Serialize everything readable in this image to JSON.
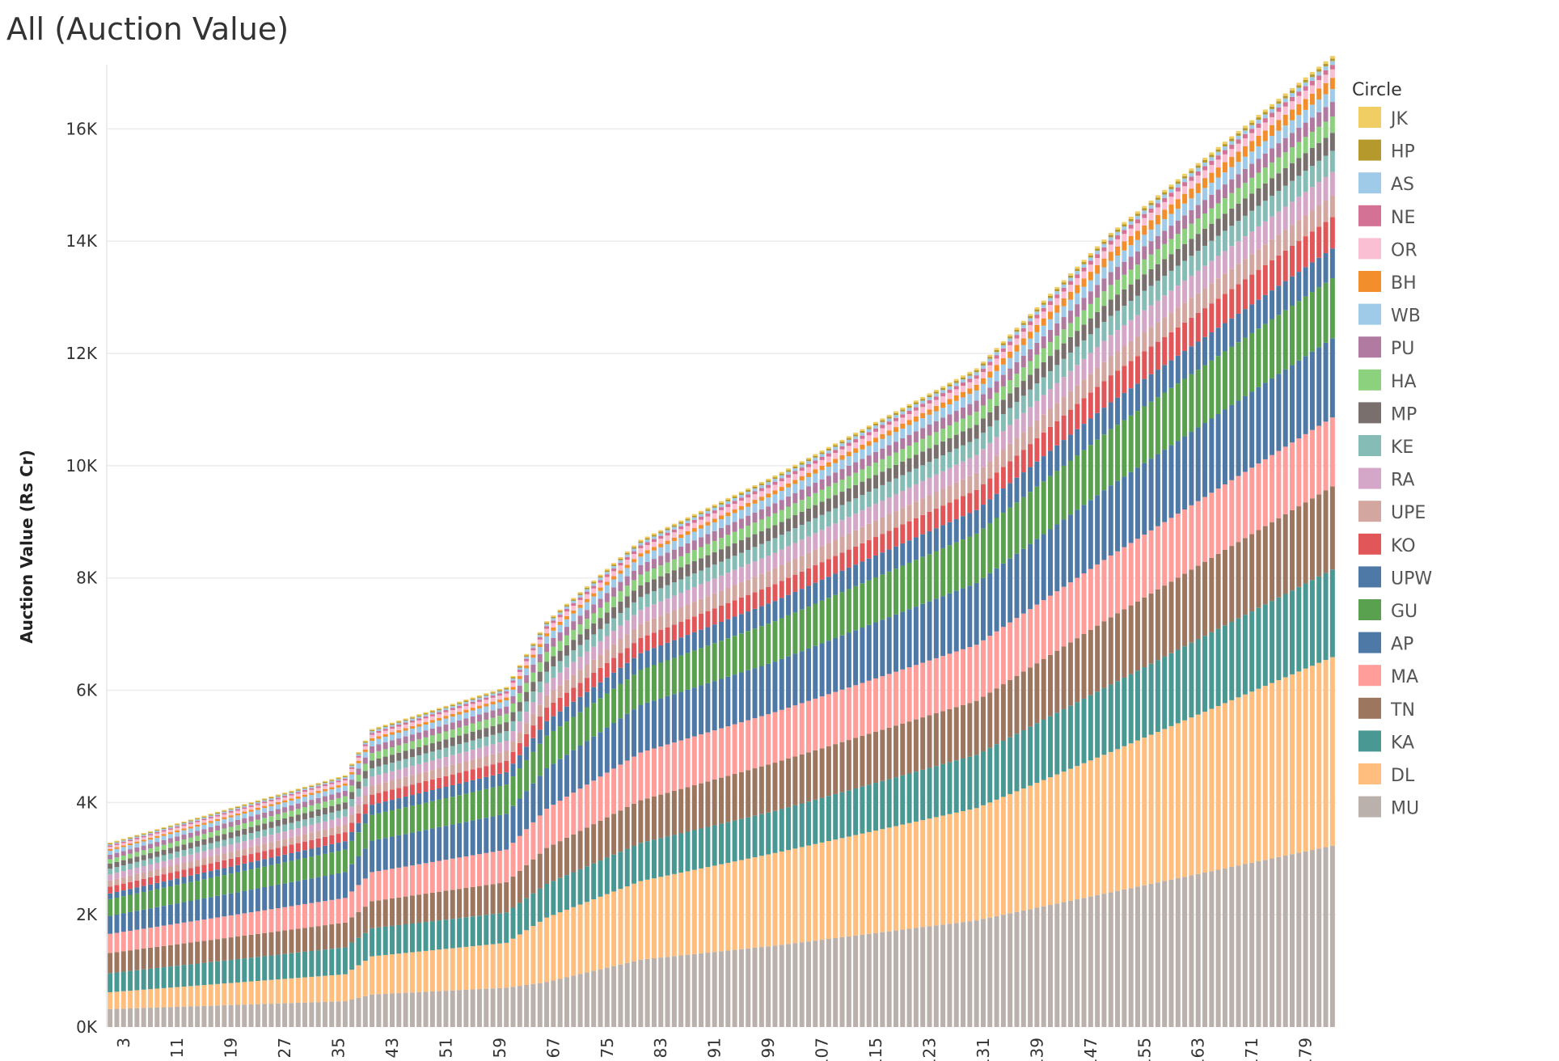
{
  "chart_data": {
    "type": "bar",
    "stacked": true,
    "title": "All (Auction Value)",
    "ylabel": "Auction Value (Rs Cr)",
    "xlabel": "",
    "ylim": [
      0,
      17000
    ],
    "y_ticks": [
      "0K",
      "2K",
      "4K",
      "6K",
      "8K",
      "10K",
      "12K",
      "14K",
      "16K"
    ],
    "y_tick_values": [
      0,
      2000,
      4000,
      6000,
      8000,
      10000,
      12000,
      14000,
      16000
    ],
    "x_start": 1,
    "x_end": 183,
    "x_ticks": [
      3,
      11,
      19,
      27,
      35,
      43,
      51,
      59,
      67,
      75,
      83,
      91,
      99,
      107,
      115,
      123,
      131,
      139,
      147,
      155,
      163,
      171,
      179
    ],
    "grid": true,
    "legend_title": "Circle",
    "legend_position": "right",
    "series": [
      {
        "name": "MU",
        "color": "#bab0ac",
        "anchors": [
          [
            1,
            320
          ],
          [
            36,
            460
          ],
          [
            40,
            580
          ],
          [
            60,
            700
          ],
          [
            66,
            800
          ],
          [
            80,
            1200
          ],
          [
            100,
            1450
          ],
          [
            130,
            1900
          ],
          [
            150,
            2400
          ],
          [
            183,
            3230
          ]
        ]
      },
      {
        "name": "DL",
        "color": "#ffbe7d",
        "anchors": [
          [
            1,
            300
          ],
          [
            36,
            480
          ],
          [
            40,
            680
          ],
          [
            60,
            800
          ],
          [
            66,
            1150
          ],
          [
            80,
            1400
          ],
          [
            100,
            1650
          ],
          [
            130,
            2000
          ],
          [
            150,
            2500
          ],
          [
            183,
            3360
          ]
        ]
      },
      {
        "name": "KA",
        "color": "#499894",
        "anchors": [
          [
            1,
            340
          ],
          [
            36,
            480
          ],
          [
            40,
            500
          ],
          [
            60,
            540
          ],
          [
            66,
            600
          ],
          [
            80,
            680
          ],
          [
            100,
            750
          ],
          [
            130,
            950
          ],
          [
            150,
            1200
          ],
          [
            183,
            1560
          ]
        ]
      },
      {
        "name": "TN",
        "color": "#9d7660",
        "anchors": [
          [
            1,
            360
          ],
          [
            36,
            440
          ],
          [
            40,
            480
          ],
          [
            60,
            540
          ],
          [
            66,
            640
          ],
          [
            80,
            760
          ],
          [
            100,
            860
          ],
          [
            130,
            960
          ],
          [
            150,
            1200
          ],
          [
            183,
            1480
          ]
        ]
      },
      {
        "name": "MA",
        "color": "#ff9d9a",
        "anchors": [
          [
            1,
            340
          ],
          [
            36,
            440
          ],
          [
            40,
            520
          ],
          [
            60,
            580
          ],
          [
            66,
            700
          ],
          [
            80,
            850
          ],
          [
            100,
            900
          ],
          [
            130,
            1000
          ],
          [
            150,
            1100
          ],
          [
            183,
            1230
          ]
        ]
      },
      {
        "name": "AP",
        "color": "#4e79a7",
        "anchors": [
          [
            1,
            320
          ],
          [
            36,
            460
          ],
          [
            40,
            560
          ],
          [
            60,
            640
          ],
          [
            66,
            720
          ],
          [
            80,
            850
          ],
          [
            100,
            900
          ],
          [
            130,
            1100
          ],
          [
            150,
            1250
          ],
          [
            183,
            1410
          ]
        ]
      },
      {
        "name": "GU",
        "color": "#59a14f",
        "anchors": [
          [
            1,
            300
          ],
          [
            36,
            400
          ],
          [
            40,
            460
          ],
          [
            60,
            520
          ],
          [
            66,
            580
          ],
          [
            80,
            620
          ],
          [
            100,
            720
          ],
          [
            130,
            880
          ],
          [
            150,
            1000
          ],
          [
            183,
            1070
          ]
        ]
      },
      {
        "name": "UPW",
        "color": "#4e79a7",
        "anchors": [
          [
            1,
            100
          ],
          [
            36,
            150
          ],
          [
            40,
            180
          ],
          [
            60,
            220
          ],
          [
            66,
            260
          ],
          [
            80,
            300
          ],
          [
            100,
            360
          ],
          [
            130,
            420
          ],
          [
            150,
            480
          ],
          [
            183,
            530
          ]
        ]
      },
      {
        "name": "KO",
        "color": "#e15759",
        "anchors": [
          [
            1,
            120
          ],
          [
            36,
            160
          ],
          [
            40,
            180
          ],
          [
            60,
            200
          ],
          [
            66,
            240
          ],
          [
            80,
            270
          ],
          [
            100,
            300
          ],
          [
            130,
            360
          ],
          [
            150,
            480
          ],
          [
            183,
            560
          ]
        ]
      },
      {
        "name": "UPE",
        "color": "#d4a6a0",
        "anchors": [
          [
            1,
            110
          ],
          [
            36,
            140
          ],
          [
            40,
            160
          ],
          [
            60,
            180
          ],
          [
            66,
            220
          ],
          [
            80,
            250
          ],
          [
            100,
            280
          ],
          [
            130,
            300
          ],
          [
            150,
            340
          ],
          [
            183,
            380
          ]
        ]
      },
      {
        "name": "RA",
        "color": "#d4a6c8",
        "anchors": [
          [
            1,
            110
          ],
          [
            36,
            140
          ],
          [
            40,
            160
          ],
          [
            60,
            180
          ],
          [
            66,
            220
          ],
          [
            80,
            250
          ],
          [
            100,
            280
          ],
          [
            130,
            320
          ],
          [
            150,
            380
          ],
          [
            183,
            420
          ]
        ]
      },
      {
        "name": "KE",
        "color": "#86bcb6",
        "anchors": [
          [
            1,
            100
          ],
          [
            36,
            130
          ],
          [
            40,
            150
          ],
          [
            60,
            170
          ],
          [
            66,
            200
          ],
          [
            80,
            230
          ],
          [
            100,
            260
          ],
          [
            130,
            290
          ],
          [
            150,
            340
          ],
          [
            183,
            380
          ]
        ]
      },
      {
        "name": "MP",
        "color": "#79706e",
        "anchors": [
          [
            1,
            90
          ],
          [
            36,
            120
          ],
          [
            40,
            140
          ],
          [
            60,
            160
          ],
          [
            66,
            180
          ],
          [
            80,
            210
          ],
          [
            100,
            230
          ],
          [
            130,
            250
          ],
          [
            150,
            290
          ],
          [
            183,
            320
          ]
        ]
      },
      {
        "name": "HA",
        "color": "#8cd17d",
        "anchors": [
          [
            1,
            80
          ],
          [
            36,
            110
          ],
          [
            40,
            130
          ],
          [
            60,
            150
          ],
          [
            66,
            170
          ],
          [
            80,
            190
          ],
          [
            100,
            210
          ],
          [
            130,
            230
          ],
          [
            150,
            260
          ],
          [
            183,
            290
          ]
        ]
      },
      {
        "name": "PU",
        "color": "#b07aa1",
        "anchors": [
          [
            1,
            80
          ],
          [
            36,
            100
          ],
          [
            40,
            120
          ],
          [
            60,
            130
          ],
          [
            66,
            150
          ],
          [
            80,
            170
          ],
          [
            100,
            180
          ],
          [
            130,
            200
          ],
          [
            150,
            230
          ],
          [
            183,
            260
          ]
        ]
      },
      {
        "name": "WB",
        "color": "#a0cbe8",
        "anchors": [
          [
            1,
            70
          ],
          [
            36,
            90
          ],
          [
            40,
            100
          ],
          [
            60,
            110
          ],
          [
            66,
            130
          ],
          [
            80,
            150
          ],
          [
            100,
            160
          ],
          [
            130,
            180
          ],
          [
            150,
            200
          ],
          [
            183,
            230
          ]
        ]
      },
      {
        "name": "BH",
        "color": "#f28e2b",
        "anchors": [
          [
            1,
            30
          ],
          [
            36,
            40
          ],
          [
            40,
            45
          ],
          [
            60,
            50
          ],
          [
            66,
            55
          ],
          [
            80,
            60
          ],
          [
            100,
            70
          ],
          [
            130,
            100
          ],
          [
            150,
            160
          ],
          [
            183,
            200
          ]
        ]
      },
      {
        "name": "OR",
        "color": "#fabfd2",
        "anchors": [
          [
            1,
            40
          ],
          [
            36,
            55
          ],
          [
            40,
            60
          ],
          [
            60,
            70
          ],
          [
            66,
            80
          ],
          [
            80,
            90
          ],
          [
            100,
            100
          ],
          [
            130,
            110
          ],
          [
            150,
            130
          ],
          [
            183,
            150
          ]
        ]
      },
      {
        "name": "NE",
        "color": "#d37295",
        "anchors": [
          [
            1,
            25
          ],
          [
            36,
            30
          ],
          [
            40,
            35
          ],
          [
            60,
            40
          ],
          [
            66,
            45
          ],
          [
            80,
            50
          ],
          [
            100,
            55
          ],
          [
            130,
            60
          ],
          [
            150,
            70
          ],
          [
            183,
            80
          ]
        ]
      },
      {
        "name": "AS",
        "color": "#a0cbe8",
        "anchors": [
          [
            1,
            20
          ],
          [
            36,
            25
          ],
          [
            40,
            30
          ],
          [
            60,
            35
          ],
          [
            66,
            40
          ],
          [
            80,
            45
          ],
          [
            100,
            50
          ],
          [
            130,
            55
          ],
          [
            150,
            60
          ],
          [
            183,
            70
          ]
        ]
      },
      {
        "name": "HP",
        "color": "#b6992d",
        "anchors": [
          [
            1,
            15
          ],
          [
            36,
            18
          ],
          [
            40,
            20
          ],
          [
            60,
            22
          ],
          [
            66,
            25
          ],
          [
            80,
            28
          ],
          [
            100,
            30
          ],
          [
            130,
            35
          ],
          [
            150,
            40
          ],
          [
            183,
            45
          ]
        ]
      },
      {
        "name": "JK",
        "color": "#f1ce63",
        "anchors": [
          [
            1,
            15
          ],
          [
            36,
            18
          ],
          [
            40,
            20
          ],
          [
            60,
            22
          ],
          [
            66,
            25
          ],
          [
            80,
            28
          ],
          [
            100,
            30
          ],
          [
            130,
            35
          ],
          [
            150,
            40
          ],
          [
            183,
            45
          ]
        ]
      }
    ]
  }
}
